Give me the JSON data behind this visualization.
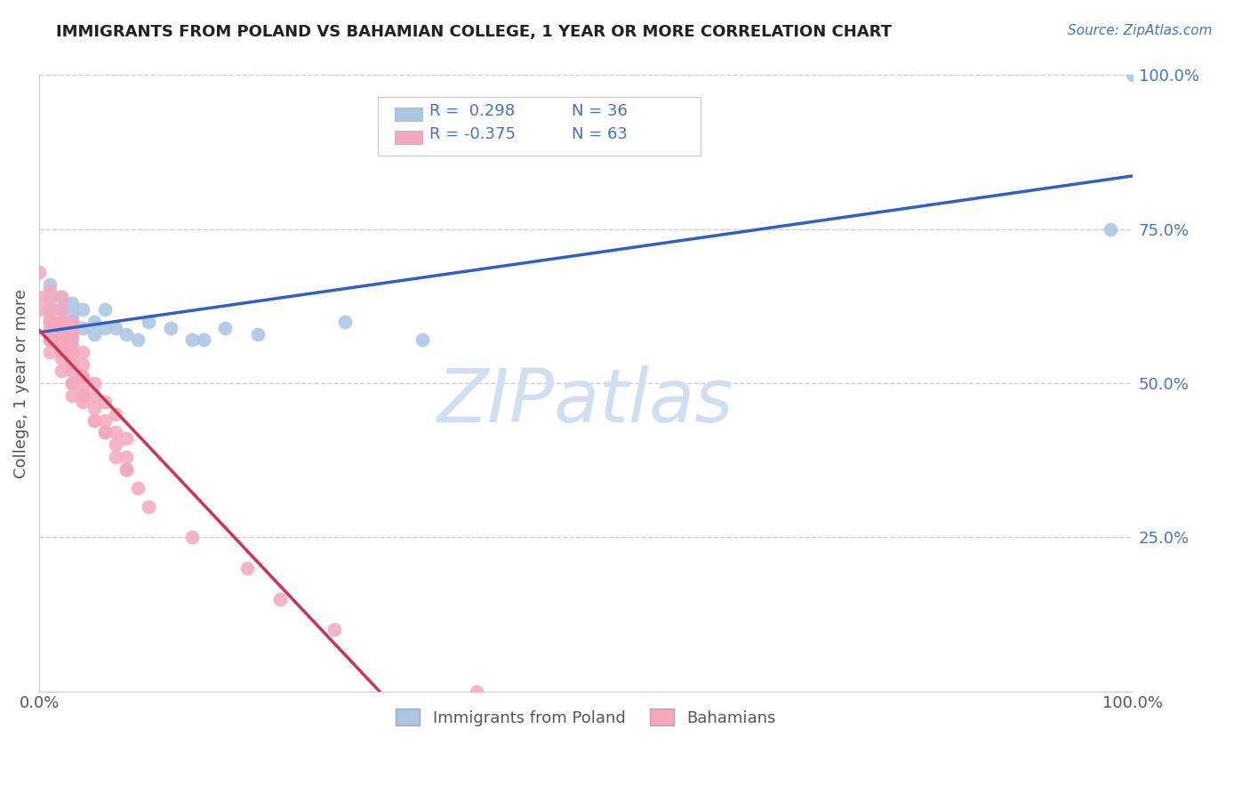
{
  "title": "IMMIGRANTS FROM POLAND VS BAHAMIAN COLLEGE, 1 YEAR OR MORE CORRELATION CHART",
  "source_text": "Source: ZipAtlas.com",
  "ylabel": "College, 1 year or more",
  "xlim": [
    0.0,
    1.0
  ],
  "ylim": [
    0.0,
    1.0
  ],
  "ytick_positions": [
    0.25,
    0.5,
    0.75,
    1.0
  ],
  "ytick_labels": [
    "25.0%",
    "50.0%",
    "75.0%",
    "100.0%"
  ],
  "xtick_positions": [
    0.0,
    1.0
  ],
  "xtick_labels": [
    "0.0%",
    "100.0%"
  ],
  "grid_color": "#cccccc",
  "background_color": "#ffffff",
  "legend_R1": "R =  0.298",
  "legend_N1": "N = 36",
  "legend_R2": "R = -0.375",
  "legend_N2": "N = 63",
  "poland_color": "#aac4e2",
  "bahamian_color": "#f5a8bc",
  "poland_edge_color": "#7aabda",
  "bahamian_edge_color": "#f07898",
  "poland_line_color": "#3060c0",
  "bahamian_line_color": "#cc3355",
  "legend_text_color": "#4472c4",
  "ytick_color": "#4472c4",
  "watermark_color": "#d0dff0",
  "poland_x": [
    0.01,
    0.01,
    0.01,
    0.01,
    0.02,
    0.02,
    0.02,
    0.02,
    0.02,
    0.02,
    0.02,
    0.02,
    0.03,
    0.03,
    0.03,
    0.03,
    0.03,
    0.04,
    0.04,
    0.05,
    0.05,
    0.06,
    0.06,
    0.07,
    0.08,
    0.09,
    0.1,
    0.12,
    0.14,
    0.15,
    0.17,
    0.2,
    0.28,
    0.35,
    0.98,
    1.0
  ],
  "poland_y": [
    0.6,
    0.62,
    0.64,
    0.66,
    0.57,
    0.58,
    0.6,
    0.62,
    0.64,
    0.57,
    0.6,
    0.62,
    0.57,
    0.59,
    0.61,
    0.63,
    0.6,
    0.59,
    0.62,
    0.58,
    0.6,
    0.59,
    0.62,
    0.59,
    0.58,
    0.57,
    0.6,
    0.59,
    0.57,
    0.57,
    0.59,
    0.58,
    0.6,
    0.57,
    0.75,
    1.0
  ],
  "bahamian_x": [
    0.0,
    0.0,
    0.0,
    0.01,
    0.01,
    0.01,
    0.01,
    0.01,
    0.01,
    0.01,
    0.01,
    0.02,
    0.02,
    0.02,
    0.02,
    0.02,
    0.02,
    0.02,
    0.02,
    0.02,
    0.02,
    0.03,
    0.03,
    0.03,
    0.03,
    0.03,
    0.03,
    0.03,
    0.03,
    0.03,
    0.03,
    0.03,
    0.04,
    0.04,
    0.04,
    0.04,
    0.04,
    0.04,
    0.04,
    0.05,
    0.05,
    0.05,
    0.05,
    0.05,
    0.06,
    0.06,
    0.06,
    0.06,
    0.07,
    0.07,
    0.07,
    0.07,
    0.08,
    0.08,
    0.08,
    0.08,
    0.09,
    0.1,
    0.14,
    0.19,
    0.22,
    0.27,
    0.4
  ],
  "bahamian_y": [
    0.62,
    0.64,
    0.68,
    0.55,
    0.57,
    0.59,
    0.61,
    0.63,
    0.65,
    0.57,
    0.6,
    0.52,
    0.54,
    0.56,
    0.58,
    0.6,
    0.62,
    0.64,
    0.55,
    0.57,
    0.6,
    0.48,
    0.5,
    0.52,
    0.54,
    0.56,
    0.58,
    0.6,
    0.5,
    0.53,
    0.55,
    0.58,
    0.47,
    0.49,
    0.51,
    0.53,
    0.55,
    0.48,
    0.51,
    0.44,
    0.46,
    0.48,
    0.5,
    0.44,
    0.42,
    0.44,
    0.47,
    0.42,
    0.38,
    0.4,
    0.42,
    0.45,
    0.36,
    0.38,
    0.41,
    0.36,
    0.33,
    0.3,
    0.25,
    0.2,
    0.15,
    0.1,
    0.0
  ]
}
